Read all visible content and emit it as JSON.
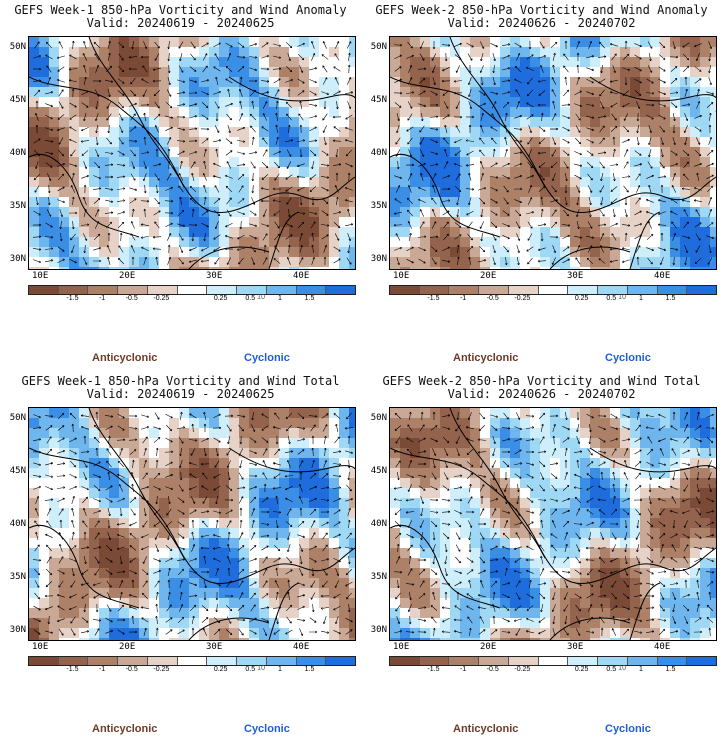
{
  "panels": [
    {
      "title": "GEFS Week-1 850-hPa Vorticity and Wind Anomaly",
      "valid": "Valid: 20240619 - 20240625"
    },
    {
      "title": "GEFS Week-2 850-hPa Vorticity and Wind Anomaly",
      "valid": "Valid: 20240626 - 20240702"
    },
    {
      "title": "GEFS Week-1 850-hPa Vorticity and Wind Total",
      "valid": "Valid: 20240619 - 20240625"
    },
    {
      "title": "GEFS Week-2 850-hPa Vorticity and Wind Total",
      "valid": "Valid: 20240626 - 20240702"
    }
  ],
  "axes": {
    "lat_labels": [
      "50N",
      "45N",
      "40N",
      "35N",
      "30N"
    ],
    "lon_labels": [
      "10E",
      "20E",
      "30E",
      "40E"
    ]
  },
  "colorbar": {
    "ticks": [
      "-1.5",
      "-1",
      "-0.5",
      "-0.25",
      "0.25",
      "0.5",
      "1",
      "1.5"
    ],
    "scale_label": "10",
    "colors": [
      "#7a4a36",
      "#93634e",
      "#ad8068",
      "#c9a896",
      "#e6d2c7",
      "#ffffff",
      "#cdeefa",
      "#9fd8f5",
      "#6fb5ee",
      "#3a8ee6",
      "#1f6ddc"
    ]
  },
  "legend": {
    "anticyclonic": "Anticyclonic",
    "cyclonic": "Cyclonic"
  }
}
